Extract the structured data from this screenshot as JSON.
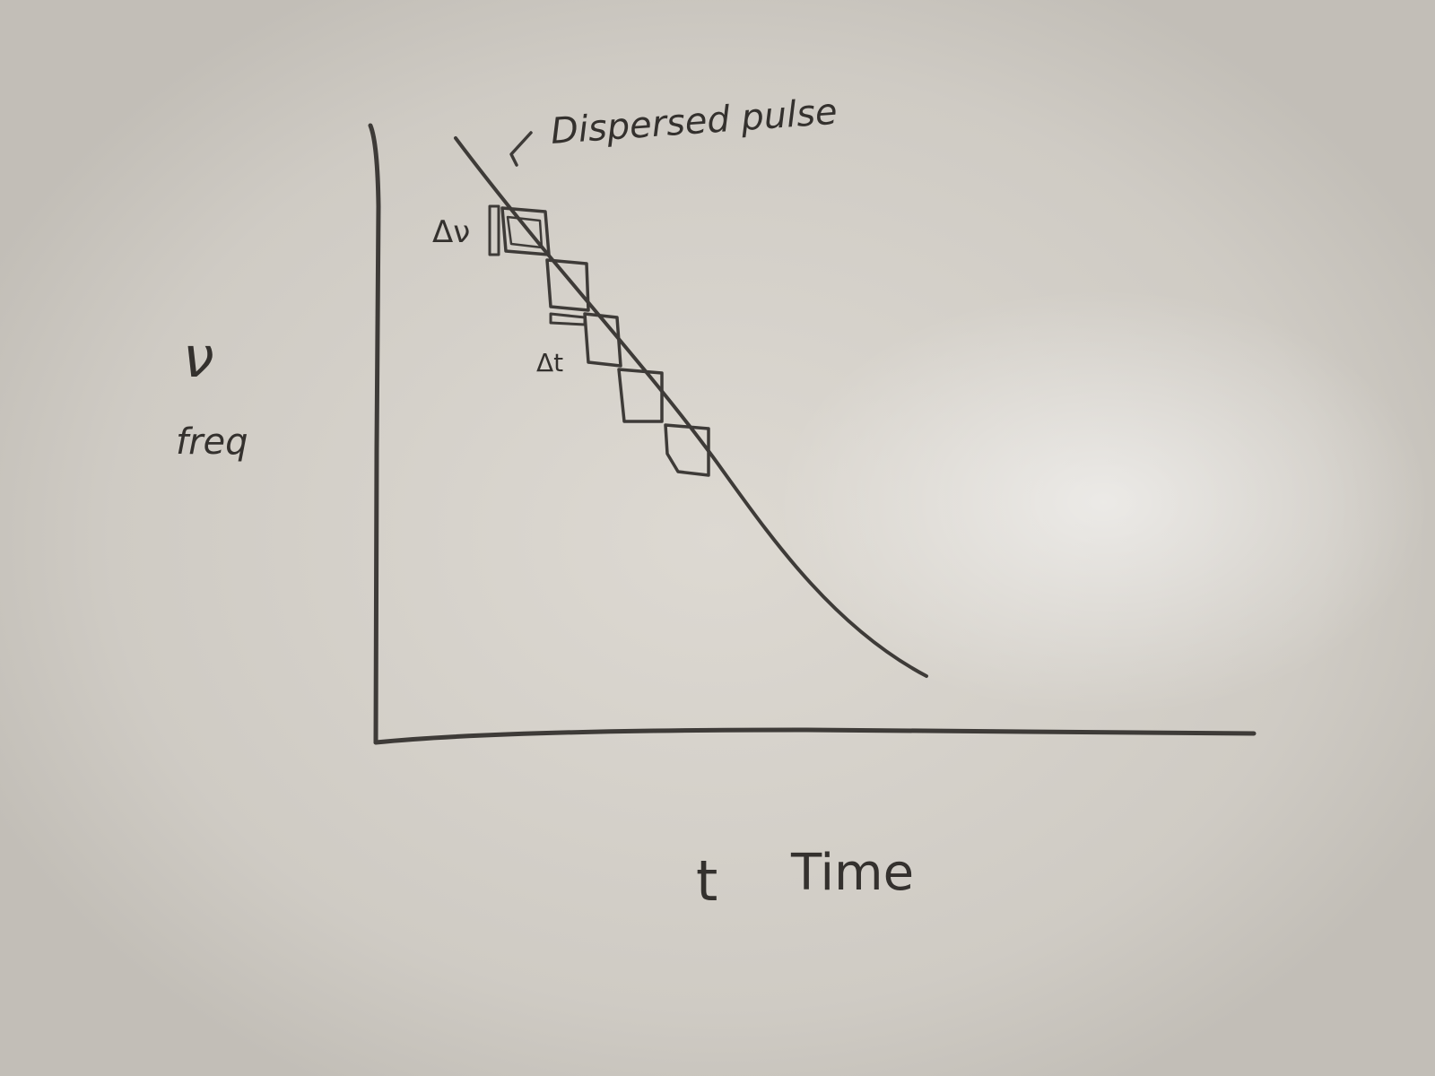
{
  "annotation": {
    "text": "Dispersed pulse"
  },
  "labels": {
    "delta_nu": "Δν",
    "delta_t": "Δt",
    "y_symbol": "ν",
    "y_word": "freq",
    "x_symbol": "t",
    "x_word": "Time"
  },
  "colors": {
    "board": "#d3cfc8",
    "ink": "#3e3b38"
  }
}
